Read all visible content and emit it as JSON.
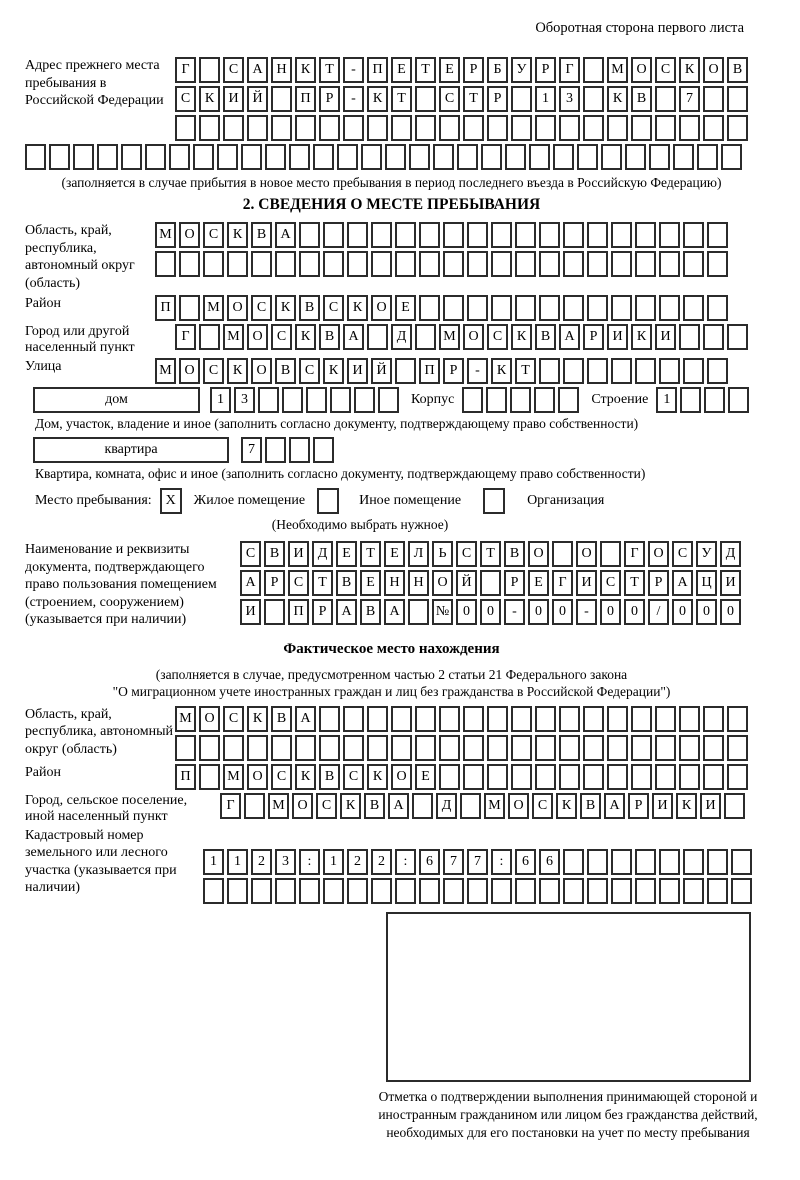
{
  "page_title": "Оборотная сторона первого листа",
  "prev_address": {
    "label": "Адрес прежнего места пребывания в Российской Федерации",
    "rows": [
      [
        "Г",
        "",
        "С",
        "А",
        "Н",
        "К",
        "Т",
        "-",
        "П",
        "Е",
        "Т",
        "Е",
        "Р",
        "Б",
        "У",
        "Р",
        "Г",
        "",
        "М",
        "О",
        "С",
        "К",
        "О",
        "В"
      ],
      [
        "С",
        "К",
        "И",
        "Й",
        "",
        "П",
        "Р",
        "-",
        "К",
        "Т",
        "",
        "С",
        "Т",
        "Р",
        "",
        "1",
        "3",
        "",
        "К",
        "В",
        "",
        "7",
        "",
        ""
      ],
      [
        "",
        "",
        "",
        "",
        "",
        "",
        "",
        "",
        "",
        "",
        "",
        "",
        "",
        "",
        "",
        "",
        "",
        "",
        "",
        "",
        "",
        "",
        "",
        ""
      ]
    ],
    "overflow_row": [
      "",
      "",
      "",
      "",
      "",
      "",
      "",
      "",
      "",
      "",
      "",
      "",
      "",
      "",
      "",
      "",
      "",
      "",
      "",
      "",
      "",
      "",
      "",
      "",
      "",
      "",
      "",
      "",
      "",
      ""
    ],
    "note": "(заполняется в случае прибытия в новое место пребывания в период последнего въезда в Российскую Федерацию)"
  },
  "section2": {
    "title": "2. СВЕДЕНИЯ О МЕСТЕ ПРЕБЫВАНИЯ",
    "region": {
      "label": "Область, край, республика, автономный округ (область)",
      "rows": [
        [
          "М",
          "О",
          "С",
          "К",
          "В",
          "А",
          "",
          "",
          "",
          "",
          "",
          "",
          "",
          "",
          "",
          "",
          "",
          "",
          "",
          "",
          "",
          "",
          "",
          ""
        ],
        [
          "",
          "",
          "",
          "",
          "",
          "",
          "",
          "",
          "",
          "",
          "",
          "",
          "",
          "",
          "",
          "",
          "",
          "",
          "",
          "",
          "",
          "",
          "",
          ""
        ]
      ]
    },
    "district": {
      "label": "Район",
      "cells": [
        "П",
        "",
        "М",
        "О",
        "С",
        "К",
        "В",
        "С",
        "К",
        "О",
        "Е",
        "",
        "",
        "",
        "",
        "",
        "",
        "",
        "",
        "",
        "",
        "",
        "",
        ""
      ]
    },
    "city": {
      "label": "Город или другой населенный пункт",
      "cells": [
        "Г",
        "",
        "М",
        "О",
        "С",
        "К",
        "В",
        "А",
        "",
        "Д",
        "",
        "М",
        "О",
        "С",
        "К",
        "В",
        "А",
        "Р",
        "И",
        "К",
        "И",
        "",
        "",
        ""
      ]
    },
    "street": {
      "label": "Улица",
      "cells": [
        "М",
        "О",
        "С",
        "К",
        "О",
        "В",
        "С",
        "К",
        "И",
        "Й",
        "",
        "П",
        "Р",
        "-",
        "К",
        "Т",
        "",
        "",
        "",
        "",
        "",
        "",
        "",
        ""
      ]
    },
    "house": {
      "box_label": "дом",
      "number_cells": [
        "1",
        "3",
        "",
        "",
        "",
        "",
        "",
        ""
      ],
      "korpus_label": "Корпус",
      "korpus_cells": [
        "",
        "",
        "",
        "",
        ""
      ],
      "stroenie_label": "Строение",
      "stroenie_cells": [
        "1",
        "",
        "",
        ""
      ]
    },
    "house_note": "Дом, участок, владение и иное (заполнить согласно документу, подтверждающему право собственности)",
    "apartment": {
      "box_label": "квартира",
      "cells": [
        "7",
        "",
        "",
        ""
      ]
    },
    "apartment_note": "Квартира, комната, офис и иное (заполнить согласно документу, подтверждающему право собственности)",
    "stay": {
      "label": "Место пребывания:",
      "options": [
        {
          "mark": "X",
          "label": "Жилое помещение"
        },
        {
          "mark": "",
          "label": "Иное помещение"
        },
        {
          "mark": "",
          "label": "Организация"
        }
      ],
      "note": "(Необходимо выбрать нужное)"
    },
    "document": {
      "label": "Наименование и реквизиты документа, подтверждающего право пользования помещением (строением, сооружением) (указывается при наличии)",
      "rows": [
        [
          "С",
          "В",
          "И",
          "Д",
          "Е",
          "Т",
          "Е",
          "Л",
          "Ь",
          "С",
          "Т",
          "В",
          "О",
          "",
          "О",
          "",
          "Г",
          "О",
          "С",
          "У",
          "Д"
        ],
        [
          "А",
          "Р",
          "С",
          "Т",
          "В",
          "Е",
          "Н",
          "Н",
          "О",
          "Й",
          "",
          "Р",
          "Е",
          "Г",
          "И",
          "С",
          "Т",
          "Р",
          "А",
          "Ц",
          "И"
        ],
        [
          "И",
          "",
          "П",
          "Р",
          "А",
          "В",
          "А",
          "",
          "№",
          "0",
          "0",
          "-",
          "0",
          "0",
          "-",
          "0",
          "0",
          "/",
          "0",
          "0",
          "0"
        ]
      ]
    }
  },
  "actual_location": {
    "title": "Фактическое место нахождения",
    "note_line1": "(заполняется в случае, предусмотренном частью 2 статьи 21 Федерального закона",
    "note_line2": "\"О миграционном учете иностранных граждан и лиц без гражданства в Российской Федерации\")",
    "region": {
      "label": "Область, край, республика, автономный округ (область)",
      "rows": [
        [
          "М",
          "О",
          "С",
          "К",
          "В",
          "А",
          "",
          "",
          "",
          "",
          "",
          "",
          "",
          "",
          "",
          "",
          "",
          "",
          "",
          "",
          "",
          "",
          "",
          ""
        ],
        [
          "",
          "",
          "",
          "",
          "",
          "",
          "",
          "",
          "",
          "",
          "",
          "",
          "",
          "",
          "",
          "",
          "",
          "",
          "",
          "",
          "",
          "",
          "",
          ""
        ]
      ]
    },
    "district": {
      "label": "Район",
      "cells": [
        "П",
        "",
        "М",
        "О",
        "С",
        "К",
        "В",
        "С",
        "К",
        "О",
        "Е",
        "",
        "",
        "",
        "",
        "",
        "",
        "",
        "",
        "",
        "",
        "",
        "",
        ""
      ]
    },
    "city": {
      "label": "Город, сельское поселение, иной населенный пункт",
      "cells": [
        "Г",
        "",
        "М",
        "О",
        "С",
        "К",
        "В",
        "А",
        "",
        "Д",
        "",
        "М",
        "О",
        "С",
        "К",
        "В",
        "А",
        "Р",
        "И",
        "К",
        "И",
        ""
      ]
    },
    "cadastral": {
      "label": "Кадастровый номер земельного или лесного участка (указывается при наличии)",
      "rows": [
        [
          "1",
          "1",
          "2",
          "3",
          ":",
          "1",
          "2",
          "2",
          ":",
          "6",
          "7",
          "7",
          ":",
          "6",
          "6",
          "",
          "",
          "",
          "",
          "",
          "",
          "",
          ""
        ],
        [
          "",
          "",
          "",
          "",
          "",
          "",
          "",
          "",
          "",
          "",
          "",
          "",
          "",
          "",
          "",
          "",
          "",
          "",
          "",
          "",
          "",
          "",
          ""
        ]
      ]
    },
    "stamp_note": "Отметка о подтверждении выполнения принимающей стороной и иностранным гражданином или лицом без гражданства действий, необходимых для его постановки на учет по месту пребывания"
  }
}
